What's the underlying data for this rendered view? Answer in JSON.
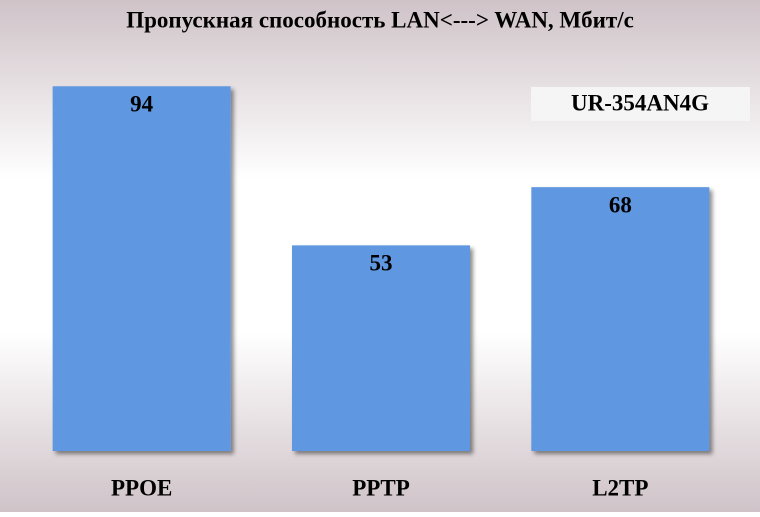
{
  "chart_data": {
    "type": "bar",
    "title": "Пропускная способность LAN<---> WAN, Мбит/с",
    "annotation": "UR-354AN4G",
    "categories": [
      "PPOE",
      "PPTP",
      "L2TP"
    ],
    "values": [
      94,
      53,
      68
    ],
    "color": "#5e97e0"
  }
}
